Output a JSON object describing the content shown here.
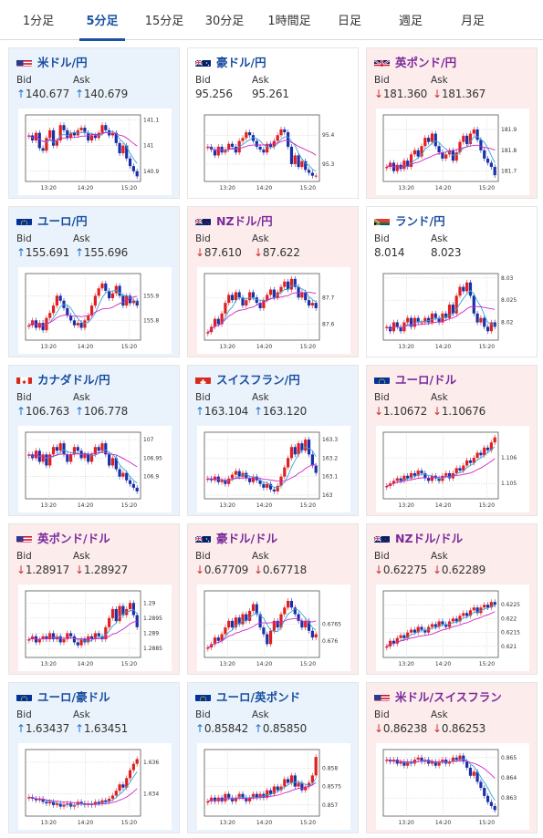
{
  "tabs": [
    "1分足",
    "5分足",
    "15分足",
    "30分足",
    "1時間足",
    "日足",
    "週足",
    "月足"
  ],
  "active_tab": 1,
  "labels": {
    "bid": "Bid",
    "ask": "Ask"
  },
  "arrows": {
    "up": "↑",
    "down": "↓"
  },
  "colors": {
    "up_panel": "#eaf3fb",
    "down_panel": "#fcecec",
    "candle_up": "#e02020",
    "candle_down": "#1a2fa8",
    "ma_short": "#35a5d8",
    "ma_long": "#d025c8"
  },
  "panels": [
    {
      "name": "米ドル/円",
      "flag": "us",
      "direction": "up",
      "bid": "140.677",
      "ask": "140.679",
      "chart_data": {
        "type": "candlestick",
        "x_ticks": [
          "13:20",
          "14:20",
          "15:20"
        ],
        "y_ticks": [
          "141.1",
          "141",
          "140.9"
        ],
        "closes": [
          141.04,
          141.02,
          141.05,
          140.99,
          140.98,
          141.03,
          141.06,
          141.0,
          141.02,
          141.08,
          141.06,
          141.03,
          141.05,
          141.04,
          141.06,
          141.07,
          141.05,
          141.02,
          141.04,
          141.03,
          141.05,
          141.08,
          141.06,
          141.04,
          141.05,
          141.01,
          140.97,
          141.0,
          140.95,
          140.92,
          140.9,
          140.88
        ],
        "ylim": [
          140.86,
          141.12
        ]
      }
    },
    {
      "name": "豪ドル/円",
      "flag": "au",
      "direction": "flat",
      "bid": "95.256",
      "ask": "95.261",
      "chart_data": {
        "type": "candlestick",
        "x_ticks": [
          "13:20",
          "14:20",
          "15:20"
        ],
        "y_ticks": [
          "95.4",
          "95.3"
        ],
        "closes": [
          95.36,
          95.35,
          95.33,
          95.36,
          95.34,
          95.35,
          95.37,
          95.36,
          95.34,
          95.38,
          95.39,
          95.41,
          95.4,
          95.38,
          95.36,
          95.35,
          95.34,
          95.37,
          95.36,
          95.38,
          95.4,
          95.42,
          95.41,
          95.36,
          95.3,
          95.33,
          95.29,
          95.31,
          95.28,
          95.27,
          95.26,
          95.26
        ],
        "ylim": [
          95.24,
          95.47
        ]
      }
    },
    {
      "name": "英ポンド/円",
      "flag": "gb",
      "direction": "down",
      "bid": "181.360",
      "ask": "181.367",
      "chart_data": {
        "type": "candlestick",
        "x_ticks": [
          "13:20",
          "14:20",
          "15:20"
        ],
        "y_ticks": [
          "181.9",
          "181.8",
          "181.7"
        ],
        "closes": [
          181.72,
          181.74,
          181.7,
          181.73,
          181.71,
          181.75,
          181.72,
          181.78,
          181.8,
          181.77,
          181.82,
          181.86,
          181.84,
          181.88,
          181.82,
          181.79,
          181.76,
          181.78,
          181.8,
          181.75,
          181.79,
          181.84,
          181.87,
          181.83,
          181.88,
          181.9,
          181.85,
          181.8,
          181.76,
          181.74,
          181.72,
          181.68
        ],
        "ylim": [
          181.65,
          181.97
        ]
      }
    },
    {
      "name": "ユーロ/円",
      "flag": "eu",
      "direction": "up",
      "bid": "155.691",
      "ask": "155.696",
      "chart_data": {
        "type": "candlestick",
        "x_ticks": [
          "13:20",
          "14:20",
          "15:20"
        ],
        "y_ticks": [
          "155.9",
          "155.8"
        ],
        "closes": [
          155.78,
          155.8,
          155.77,
          155.79,
          155.76,
          155.81,
          155.83,
          155.86,
          155.9,
          155.88,
          155.85,
          155.82,
          155.8,
          155.78,
          155.79,
          155.77,
          155.8,
          155.82,
          155.86,
          155.9,
          155.93,
          155.95,
          155.92,
          155.89,
          155.91,
          155.94,
          155.9,
          155.86,
          155.9,
          155.87,
          155.88,
          155.86
        ],
        "ylim": [
          155.72,
          155.99
        ]
      }
    },
    {
      "name": "NZドル/円",
      "flag": "nz",
      "direction": "down",
      "bid": "87.610",
      "ask": "87.622",
      "chart_data": {
        "type": "candlestick",
        "x_ticks": [
          "13:20",
          "14:20",
          "15:20"
        ],
        "y_ticks": [
          "87.7",
          "87.6"
        ],
        "closes": [
          87.57,
          87.59,
          87.62,
          87.6,
          87.64,
          87.68,
          87.71,
          87.69,
          87.72,
          87.7,
          87.67,
          87.69,
          87.72,
          87.7,
          87.68,
          87.66,
          87.69,
          87.71,
          87.73,
          87.7,
          87.72,
          87.74,
          87.76,
          87.73,
          87.77,
          87.74,
          87.7,
          87.72,
          87.69,
          87.67,
          87.68,
          87.66
        ],
        "ylim": [
          87.54,
          87.79
        ]
      }
    },
    {
      "name": "ランド/円",
      "flag": "za",
      "direction": "flat",
      "bid": "8.014",
      "ask": "8.023",
      "chart_data": {
        "type": "candlestick",
        "x_ticks": [
          "13:20",
          "14:20",
          "15:20"
        ],
        "y_ticks": [
          "8.03",
          "8.025",
          "8.02"
        ],
        "closes": [
          8.019,
          8.018,
          8.02,
          8.019,
          8.018,
          8.02,
          8.021,
          8.019,
          8.021,
          8.02,
          8.02,
          8.021,
          8.02,
          8.022,
          8.021,
          8.02,
          8.022,
          8.021,
          8.024,
          8.022,
          8.026,
          8.028,
          8.027,
          8.029,
          8.026,
          8.022,
          8.02,
          8.021,
          8.019,
          8.018,
          8.02,
          8.019
        ],
        "ylim": [
          8.016,
          8.031
        ]
      }
    },
    {
      "name": "カナダドル/円",
      "flag": "ca",
      "direction": "up",
      "bid": "106.763",
      "ask": "106.778",
      "chart_data": {
        "type": "candlestick",
        "x_ticks": [
          "13:20",
          "14:20",
          "15:20"
        ],
        "y_ticks": [
          "107",
          "106.95",
          "106.9"
        ],
        "closes": [
          106.96,
          106.95,
          106.97,
          106.94,
          106.96,
          106.93,
          106.96,
          106.98,
          106.97,
          106.99,
          106.96,
          106.94,
          106.96,
          106.98,
          106.97,
          106.95,
          106.96,
          106.94,
          106.96,
          106.98,
          106.97,
          106.99,
          106.96,
          106.93,
          106.95,
          106.92,
          106.9,
          106.91,
          106.89,
          106.88,
          106.87,
          106.86
        ],
        "ylim": [
          106.84,
          107.02
        ]
      }
    },
    {
      "name": "スイスフラン/円",
      "flag": "ch",
      "direction": "up",
      "bid": "163.104",
      "ask": "163.120",
      "chart_data": {
        "type": "candlestick",
        "x_ticks": [
          "13:20",
          "14:20",
          "15:20"
        ],
        "y_ticks": [
          "163.3",
          "163.2",
          "163.1",
          "163"
        ],
        "closes": [
          163.09,
          163.08,
          163.1,
          163.07,
          163.08,
          163.06,
          163.09,
          163.11,
          163.13,
          163.1,
          163.12,
          163.09,
          163.07,
          163.1,
          163.08,
          163.06,
          163.04,
          163.06,
          163.03,
          163.02,
          163.05,
          163.1,
          163.15,
          163.2,
          163.26,
          163.22,
          163.28,
          163.24,
          163.3,
          163.22,
          163.16,
          163.12
        ],
        "ylim": [
          162.98,
          163.34
        ]
      }
    },
    {
      "name": "ユーロ/ドル",
      "flag": "eu",
      "direction": "down",
      "bid": "1.10672",
      "ask": "1.10676",
      "chart_data": {
        "type": "candlestick",
        "x_ticks": [
          "13:20",
          "14:20",
          "15:20"
        ],
        "y_ticks": [
          "1.106",
          "1.105"
        ],
        "closes": [
          1.1049,
          1.105,
          1.1051,
          1.1052,
          1.1051,
          1.1053,
          1.1052,
          1.1054,
          1.1053,
          1.1055,
          1.1054,
          1.1052,
          1.1051,
          1.1053,
          1.1052,
          1.1051,
          1.1053,
          1.1054,
          1.1052,
          1.1054,
          1.1056,
          1.1055,
          1.1057,
          1.1059,
          1.1058,
          1.106,
          1.1062,
          1.1061,
          1.1064,
          1.1063,
          1.1066,
          1.1068
        ],
        "ylim": [
          1.1044,
          1.107
        ]
      }
    },
    {
      "name": "英ポンド/ドル",
      "flag": "us",
      "direction": "down",
      "bid": "1.28917",
      "ask": "1.28927",
      "chart_data": {
        "type": "candlestick",
        "x_ticks": [
          "13:20",
          "14:20",
          "15:20"
        ],
        "y_ticks": [
          "1.29",
          "1.2895",
          "1.289",
          "1.2885"
        ],
        "closes": [
          1.2888,
          1.2889,
          1.2887,
          1.2888,
          1.2889,
          1.2888,
          1.289,
          1.2888,
          1.2889,
          1.2887,
          1.2888,
          1.289,
          1.2889,
          1.2887,
          1.2886,
          1.2888,
          1.2887,
          1.2889,
          1.2888,
          1.289,
          1.2889,
          1.2888,
          1.2892,
          1.2895,
          1.2898,
          1.2894,
          1.2899,
          1.2896,
          1.2898,
          1.29,
          1.2896,
          1.2892
        ],
        "ylim": [
          1.2882,
          1.2904
        ]
      }
    },
    {
      "name": "豪ドル/ドル",
      "flag": "au",
      "direction": "down",
      "bid": "0.67709",
      "ask": "0.67718",
      "chart_data": {
        "type": "candlestick",
        "x_ticks": [
          "13:20",
          "14:20",
          "15:20"
        ],
        "y_ticks": [
          "0.6765",
          "0.676"
        ],
        "closes": [
          0.6758,
          0.6759,
          0.6761,
          0.676,
          0.6762,
          0.6764,
          0.6766,
          0.6764,
          0.6767,
          0.6765,
          0.6768,
          0.6766,
          0.6769,
          0.6771,
          0.6768,
          0.6764,
          0.6762,
          0.6759,
          0.6763,
          0.6766,
          0.6764,
          0.6768,
          0.677,
          0.6772,
          0.677,
          0.6768,
          0.6766,
          0.6764,
          0.6766,
          0.6763,
          0.6761,
          0.6762
        ],
        "ylim": [
          0.6755,
          0.6775
        ]
      }
    },
    {
      "name": "NZドル/ドル",
      "flag": "nz",
      "direction": "down",
      "bid": "0.62275",
      "ask": "0.62289",
      "chart_data": {
        "type": "candlestick",
        "x_ticks": [
          "13:20",
          "14:20",
          "15:20"
        ],
        "y_ticks": [
          "0.6225",
          "0.622",
          "0.6215",
          "0.621"
        ],
        "closes": [
          0.621,
          0.6212,
          0.6211,
          0.6213,
          0.6214,
          0.6213,
          0.6215,
          0.6216,
          0.6215,
          0.6217,
          0.6216,
          0.6215,
          0.6217,
          0.6218,
          0.6217,
          0.6219,
          0.6218,
          0.6217,
          0.6219,
          0.622,
          0.6219,
          0.6221,
          0.6222,
          0.6221,
          0.6223,
          0.6224,
          0.6222,
          0.6224,
          0.6225,
          0.6224,
          0.6226,
          0.6225
        ],
        "ylim": [
          0.6206,
          0.623
        ]
      }
    },
    {
      "name": "ユーロ/豪ドル",
      "flag": "eu",
      "direction": "up",
      "bid": "1.63437",
      "ask": "1.63451",
      "chart_data": {
        "type": "candlestick",
        "x_ticks": [
          "13:20",
          "14:20",
          "15:20"
        ],
        "y_ticks": [
          "1.636",
          "1.634"
        ],
        "closes": [
          1.6338,
          1.6337,
          1.6336,
          1.6337,
          1.6335,
          1.6334,
          1.6335,
          1.6333,
          1.6334,
          1.6332,
          1.6333,
          1.6334,
          1.6332,
          1.6333,
          1.6335,
          1.6334,
          1.6333,
          1.6334,
          1.6333,
          1.6335,
          1.6334,
          1.6336,
          1.6335,
          1.6337,
          1.6339,
          1.6342,
          1.6346,
          1.6344,
          1.635,
          1.6355,
          1.6359,
          1.6362
        ],
        "ylim": [
          1.6326,
          1.6368
        ]
      }
    },
    {
      "name": "ユーロ/英ポンド",
      "flag": "eu",
      "direction": "up",
      "bid": "0.85842",
      "ask": "0.85850",
      "chart_data": {
        "type": "candlestick",
        "x_ticks": [
          "13:20",
          "14:20",
          "15:20"
        ],
        "y_ticks": [
          "0.858",
          "0.8575",
          "0.857"
        ],
        "closes": [
          0.8571,
          0.8572,
          0.8571,
          0.8572,
          0.8571,
          0.8573,
          0.8572,
          0.8571,
          0.8572,
          0.8573,
          0.8572,
          0.8571,
          0.8572,
          0.8573,
          0.8572,
          0.8573,
          0.8572,
          0.8574,
          0.8573,
          0.8575,
          0.8574,
          0.8575,
          0.8577,
          0.8576,
          0.8578,
          0.8575,
          0.8576,
          0.8574,
          0.8575,
          0.8576,
          0.8578,
          0.8583
        ],
        "ylim": [
          0.8567,
          0.8585
        ]
      }
    },
    {
      "name": "米ドル/スイスフラン",
      "flag": "us",
      "direction": "down",
      "bid": "0.86238",
      "ask": "0.86253",
      "chart_data": {
        "type": "candlestick",
        "x_ticks": [
          "13:20",
          "14:20",
          "15:20"
        ],
        "y_ticks": [
          "0.865",
          "0.864",
          "0.863"
        ],
        "closes": [
          0.8649,
          0.8648,
          0.8649,
          0.8647,
          0.8648,
          0.8646,
          0.8648,
          0.8647,
          0.8649,
          0.865,
          0.8648,
          0.8649,
          0.8647,
          0.8648,
          0.8646,
          0.8648,
          0.8649,
          0.8647,
          0.8648,
          0.865,
          0.8649,
          0.8651,
          0.8648,
          0.8645,
          0.8641,
          0.8643,
          0.8638,
          0.8635,
          0.8631,
          0.8628,
          0.8626,
          0.8624
        ],
        "ylim": [
          0.8621,
          0.8654
        ]
      }
    }
  ]
}
